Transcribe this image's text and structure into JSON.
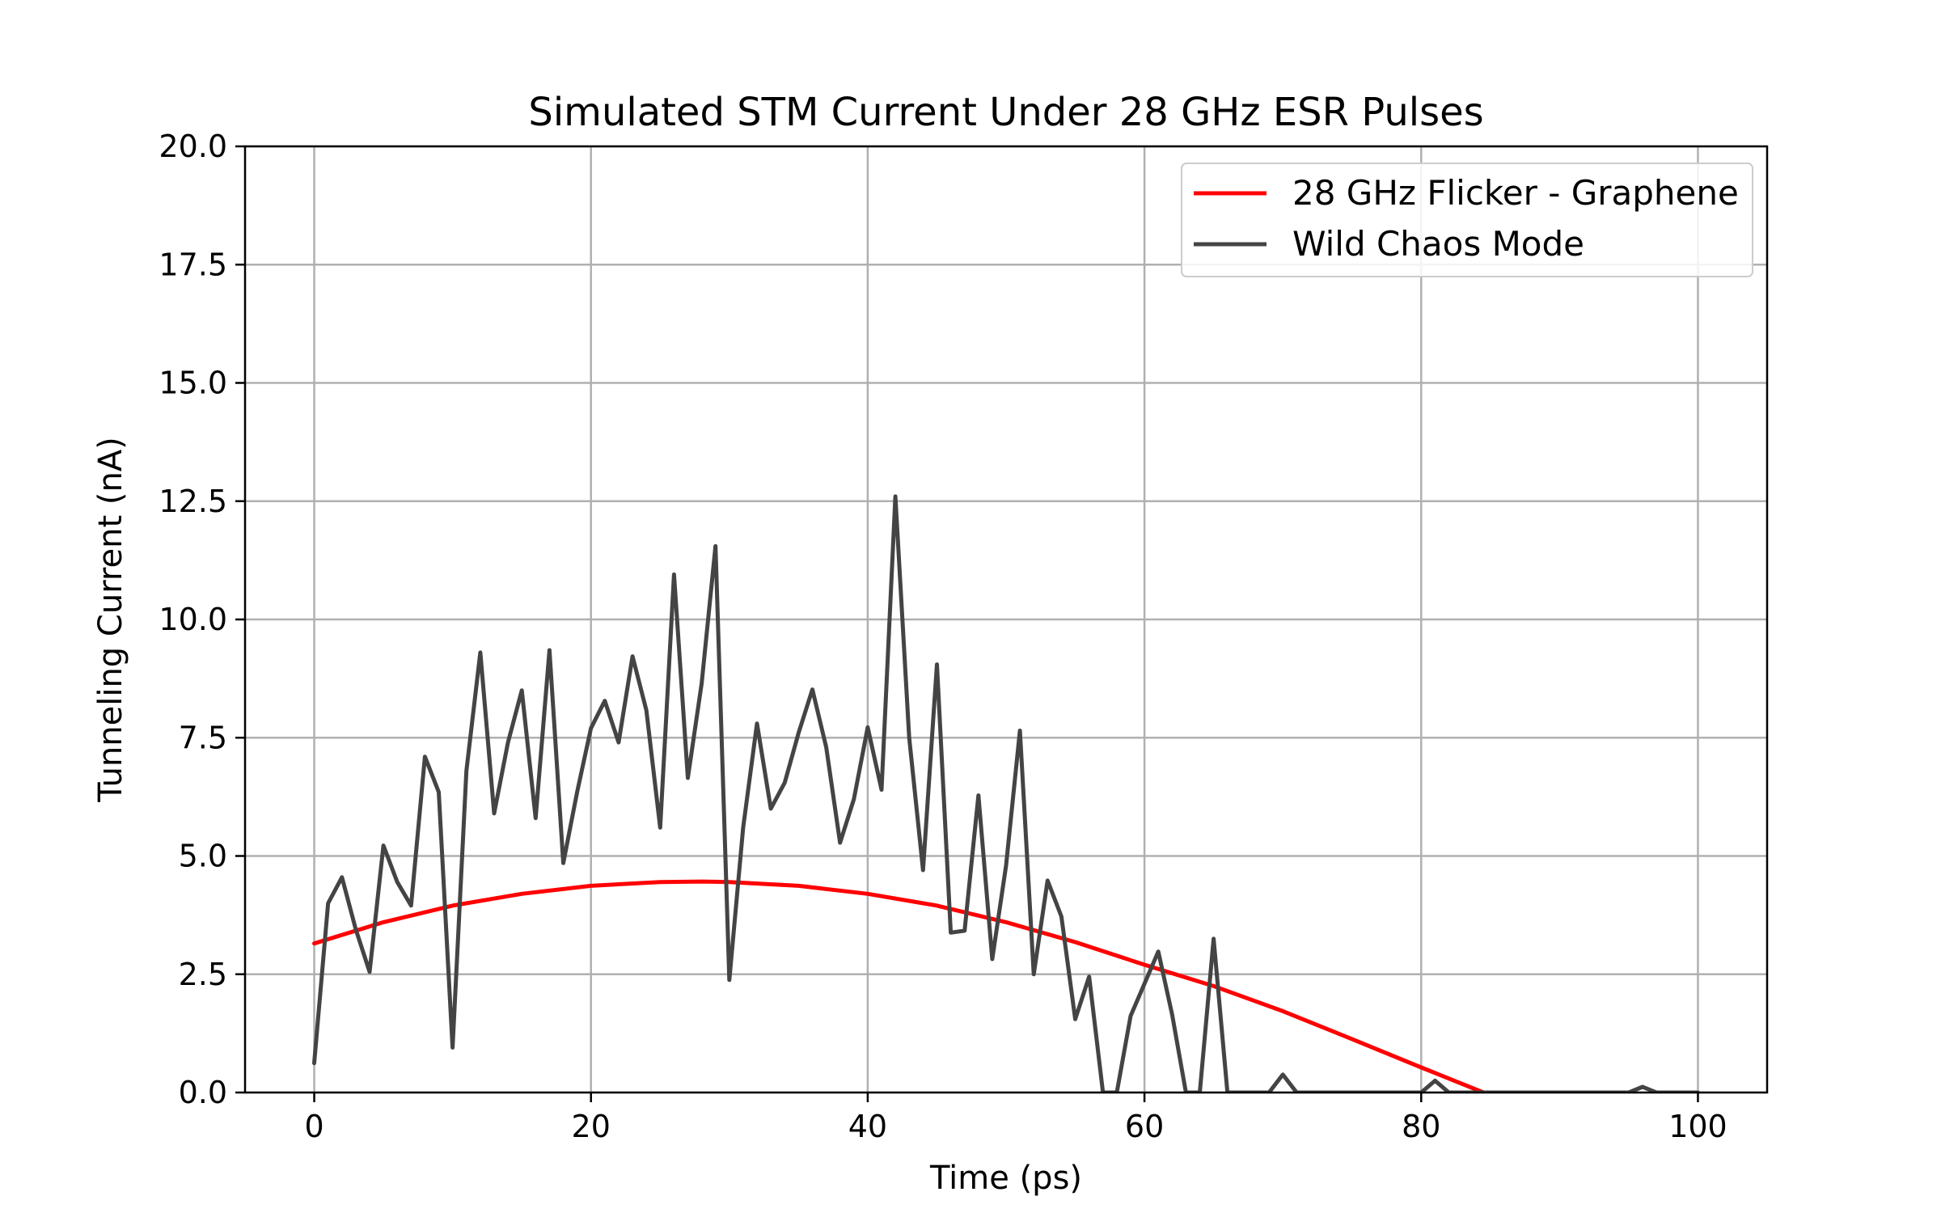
{
  "chart_data": {
    "type": "line",
    "title": "Simulated STM Current Under 28 GHz ESR Pulses",
    "xlabel": "Time (ps)",
    "ylabel": "Tunneling Current (nA)",
    "xlim": [
      -5,
      105
    ],
    "ylim": [
      0,
      20
    ],
    "x_ticks": [
      "0",
      "20",
      "40",
      "60",
      "80",
      "100"
    ],
    "y_ticks": [
      "0.0",
      "2.5",
      "5.0",
      "7.5",
      "10.0",
      "12.5",
      "15.0",
      "17.5",
      "20.0"
    ],
    "grid": true,
    "legend_position": "top-right",
    "series": [
      {
        "name": "28 GHz Flicker - Graphene",
        "color": "#ff0000",
        "x": [
          0,
          5,
          10,
          15,
          20,
          25,
          28,
          30,
          35,
          40,
          45,
          50,
          55,
          60,
          65,
          70,
          75,
          80,
          84.5
        ],
        "y": [
          3.15,
          3.6,
          3.95,
          4.2,
          4.37,
          4.45,
          4.46,
          4.45,
          4.37,
          4.2,
          3.95,
          3.6,
          3.18,
          2.7,
          2.25,
          1.72,
          1.13,
          0.53,
          0.0
        ]
      },
      {
        "name": "Wild Chaos Mode",
        "color": "#444444",
        "x": [
          0,
          1,
          2,
          3,
          4,
          5,
          6,
          7,
          8,
          9,
          10,
          11,
          12,
          13,
          14,
          15,
          16,
          17,
          18,
          19,
          20,
          21,
          22,
          23,
          24,
          25,
          26,
          27,
          28,
          29,
          30,
          31,
          32,
          33,
          34,
          35,
          36,
          37,
          38,
          39,
          40,
          41,
          42,
          43,
          44,
          45,
          46,
          47,
          48,
          49,
          50,
          51,
          52,
          53,
          54,
          55,
          56,
          57,
          58,
          59,
          60,
          61,
          62,
          63,
          64,
          65,
          66,
          67,
          68,
          69,
          70,
          71,
          72,
          73,
          74,
          75,
          76,
          77,
          78,
          79,
          80,
          81,
          82,
          83,
          84,
          85,
          86,
          87,
          88,
          89,
          90,
          91,
          92,
          93,
          94,
          95,
          96,
          97,
          98,
          99,
          100
        ],
        "y": [
          0.62,
          4.0,
          4.55,
          3.45,
          2.55,
          5.22,
          4.45,
          3.95,
          7.1,
          6.35,
          0.95,
          6.8,
          9.3,
          5.9,
          7.4,
          8.5,
          5.8,
          9.35,
          4.85,
          6.35,
          7.7,
          8.28,
          7.4,
          9.22,
          8.08,
          5.6,
          10.95,
          6.65,
          8.65,
          11.55,
          2.38,
          5.6,
          7.8,
          6.0,
          6.55,
          7.6,
          8.52,
          7.3,
          5.28,
          6.2,
          7.72,
          6.4,
          12.6,
          7.5,
          4.7,
          9.05,
          3.38,
          3.42,
          6.28,
          2.82,
          4.8,
          7.65,
          2.5,
          4.48,
          3.72,
          1.55,
          2.45,
          0.0,
          0.0,
          1.62,
          2.3,
          2.98,
          1.65,
          0.0,
          0.0,
          3.25,
          0.0,
          0.0,
          0.0,
          0.0,
          0.38,
          0.0,
          0.0,
          0.0,
          0.0,
          0.0,
          0.0,
          0.0,
          0.0,
          0.0,
          0.0,
          0.25,
          0.0,
          0.0,
          0.0,
          0.0,
          0.0,
          0.0,
          0.0,
          0.0,
          0.0,
          0.0,
          0.0,
          0.0,
          0.0,
          0.0,
          0.12,
          0.0,
          0.0,
          0.0,
          0.0
        ]
      }
    ]
  }
}
